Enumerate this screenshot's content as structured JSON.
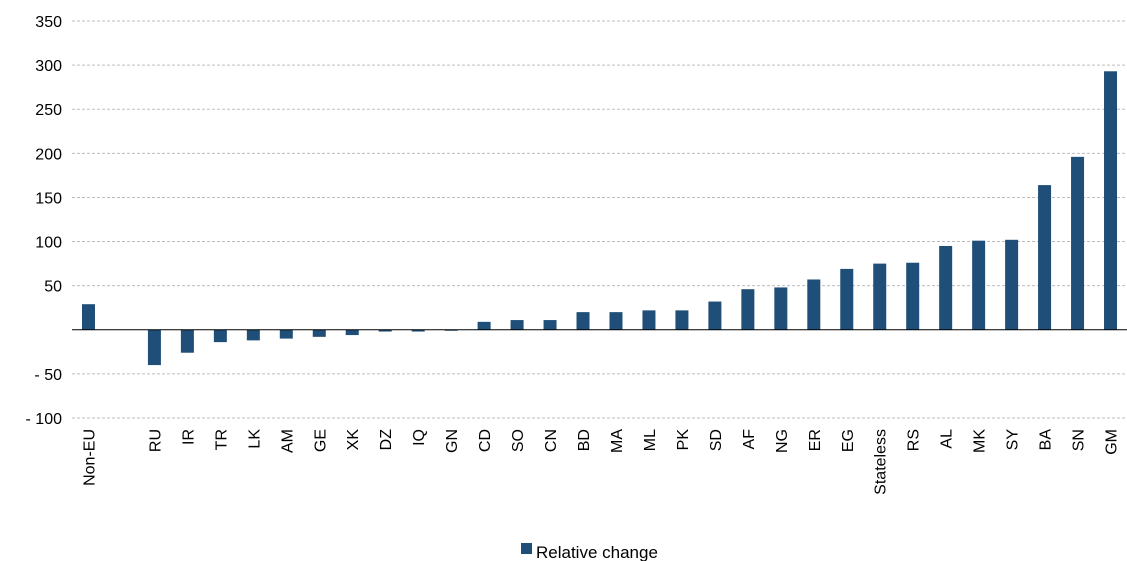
{
  "chart_data": {
    "type": "bar",
    "categories": [
      "Non-EU",
      "",
      "RU",
      "IR",
      "TR",
      "LK",
      "AM",
      "GE",
      "XK",
      "DZ",
      "IQ",
      "GN",
      "CD",
      "SO",
      "CN",
      "BD",
      "MA",
      "ML",
      "PK",
      "SD",
      "AF",
      "NG",
      "ER",
      "EG",
      "Stateless",
      "RS",
      "AL",
      "MK",
      "SY",
      "BA",
      "SN",
      "GM"
    ],
    "series": [
      {
        "name": "Relative change",
        "values": [
          29,
          null,
          -40,
          -26,
          -14,
          -12,
          -10,
          -8,
          -6,
          -2,
          -2,
          -1,
          9,
          11,
          11,
          20,
          20,
          22,
          22,
          32,
          46,
          48,
          57,
          69,
          75,
          76,
          95,
          101,
          102,
          164,
          196,
          293
        ]
      }
    ],
    "yticks": [
      "350",
      "300",
      "250",
      "200",
      "150",
      "100",
      "50",
      "- 50",
      "- 100"
    ],
    "ylim": [
      -100,
      350
    ],
    "grid": true,
    "legend": "bottom-center",
    "bar_color": "#1F4E79"
  }
}
